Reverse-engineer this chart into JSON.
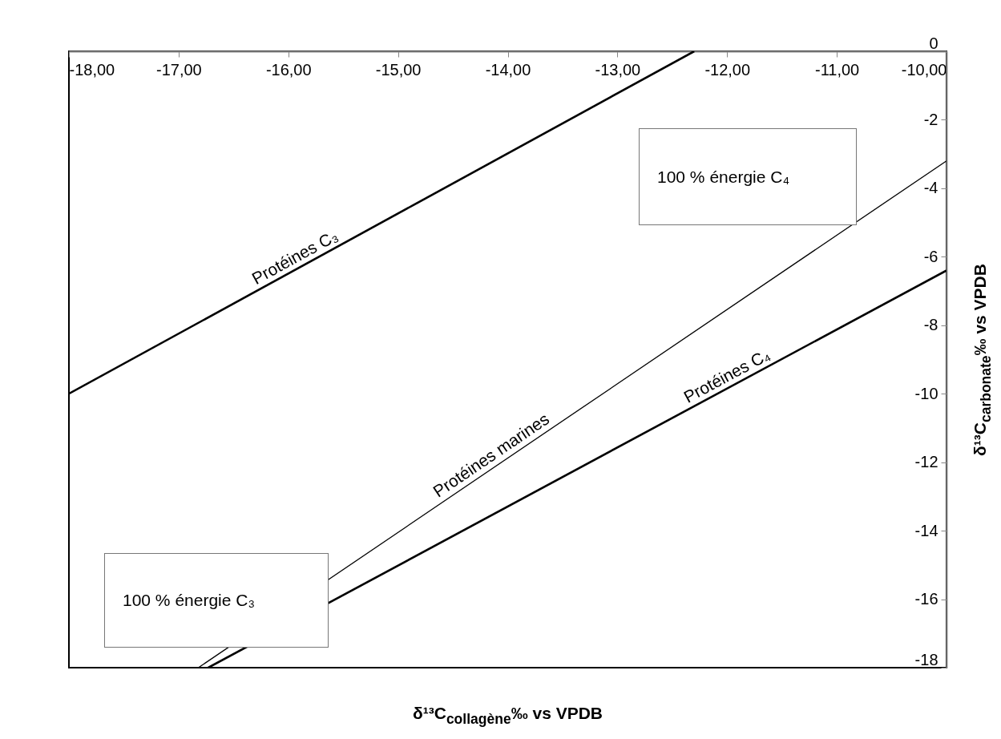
{
  "chart_data": {
    "type": "line",
    "xlabel": "δ¹³C$_{collagène}$‰ vs VPDB",
    "ylabel": "δ¹³C$_{carbonate}$‰ vs VPDB",
    "series": [
      {
        "name": "Protéines C₃",
        "color": "#000000",
        "x": [
          -18,
          -12.3
        ],
        "values": [
          -10,
          0
        ]
      },
      {
        "name": "Protéines marines",
        "color": "#000000",
        "x": [
          -16.82,
          -10
        ],
        "values": [
          -18,
          -3.2
        ]
      },
      {
        "name": "Protéines C₄",
        "color": "#000000",
        "x": [
          -16.73,
          -10
        ],
        "values": [
          -18,
          -6.4
        ]
      }
    ],
    "xlim": [
      -18,
      -10
    ],
    "xticks": [
      {
        "value": -18,
        "label": "-18,00"
      },
      {
        "value": -17,
        "label": "-17,00"
      },
      {
        "value": -16,
        "label": "-16,00"
      },
      {
        "value": -15,
        "label": "-15,00"
      },
      {
        "value": -14,
        "label": "-14,00"
      },
      {
        "value": -13,
        "label": "-13,00"
      },
      {
        "value": -12,
        "label": "-12,00"
      },
      {
        "value": -11,
        "label": "-11,00"
      },
      {
        "value": -10,
        "label": "-10,00"
      }
    ],
    "ylim": [
      -18,
      0
    ],
    "yticks": [
      -18,
      -16,
      -14,
      -12,
      -10,
      -8,
      -6,
      -4,
      -2,
      0
    ],
    "annotations": [
      "100 % énergie C₄",
      "100 % énergie C₃"
    ]
  }
}
